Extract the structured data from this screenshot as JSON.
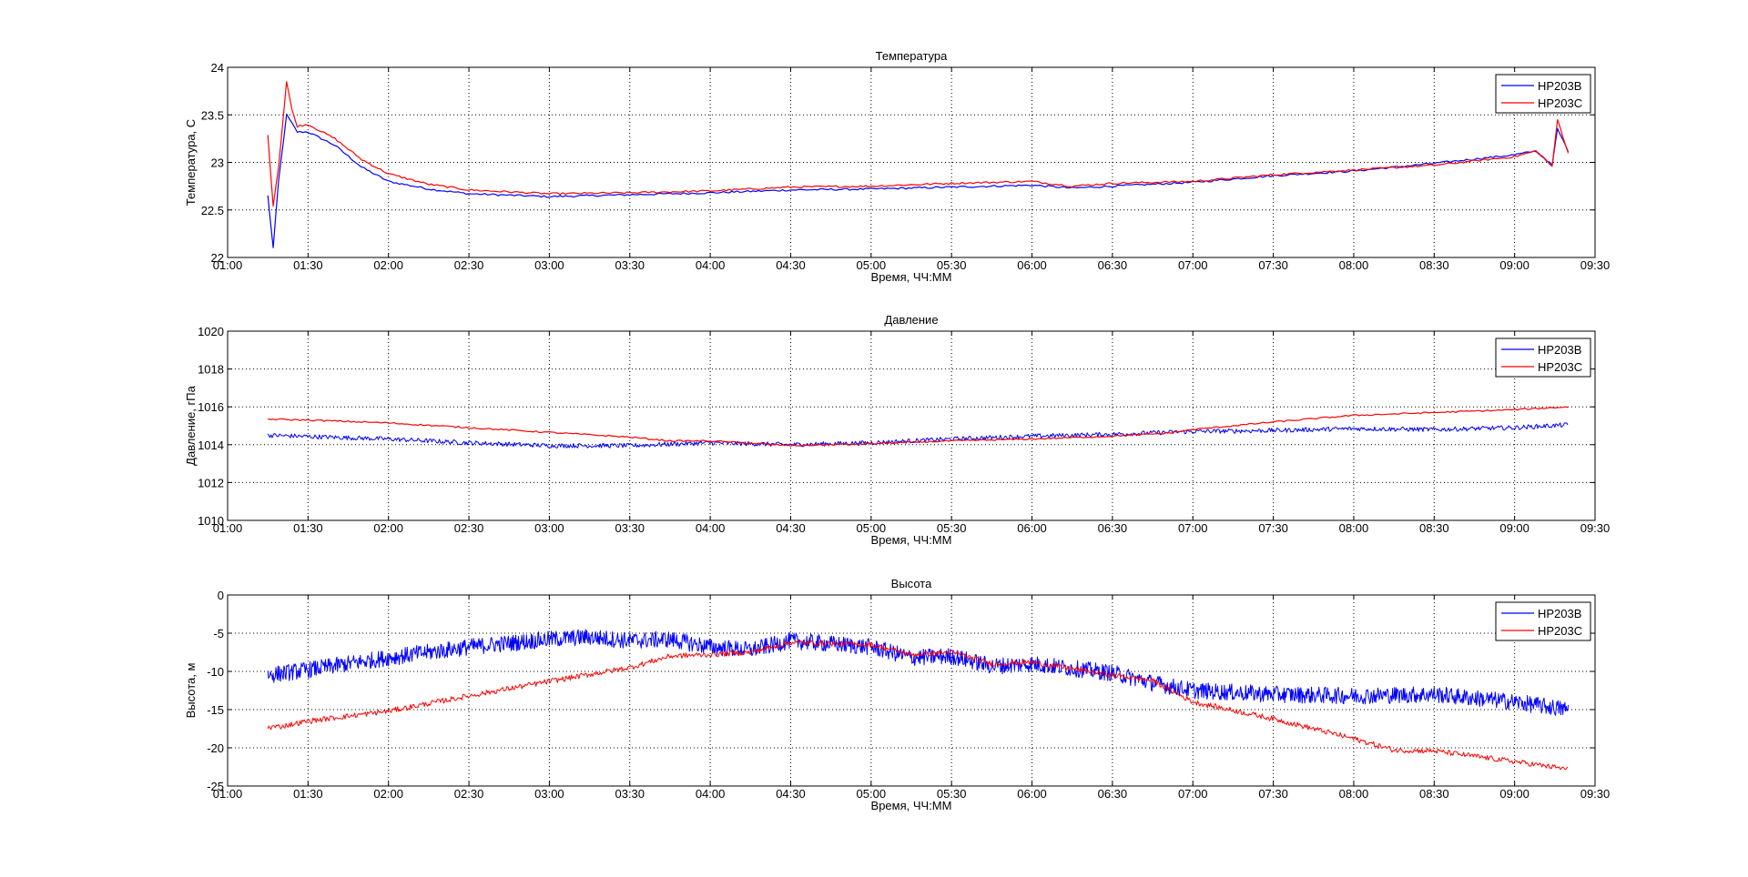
{
  "colors": {
    "HP203B": "#0000ff",
    "HP203C": "#ff0000",
    "grid": "#000000",
    "axes": "#000000"
  },
  "chart_data": [
    {
      "type": "line",
      "title": "Температура",
      "xlabel": "Время, ЧЧ:ММ",
      "ylabel": "Температура, C",
      "xlim": [
        "01:00",
        "09:30"
      ],
      "ylim": [
        22,
        24
      ],
      "xticks": [
        "01:00",
        "01:30",
        "02:00",
        "02:30",
        "03:00",
        "03:30",
        "04:00",
        "04:30",
        "05:00",
        "05:30",
        "06:00",
        "06:30",
        "07:00",
        "07:30",
        "08:00",
        "08:30",
        "09:00",
        "09:30"
      ],
      "yticks": [
        "22",
        "22.5",
        "23",
        "23.5",
        "24"
      ],
      "grid": true,
      "legend_position": "top-right",
      "series": [
        {
          "name": "HP203B",
          "color": "#0000ff",
          "noise": 0.01,
          "points": [
            [
              "01:15",
              22.65
            ],
            [
              "01:17",
              22.1
            ],
            [
              "01:19",
              22.8
            ],
            [
              "01:22",
              23.5
            ],
            [
              "01:26",
              23.32
            ],
            [
              "01:30",
              23.32
            ],
            [
              "01:40",
              23.18
            ],
            [
              "01:50",
              22.95
            ],
            [
              "02:00",
              22.8
            ],
            [
              "02:15",
              22.72
            ],
            [
              "02:30",
              22.67
            ],
            [
              "03:00",
              22.64
            ],
            [
              "03:30",
              22.66
            ],
            [
              "04:00",
              22.68
            ],
            [
              "04:30",
              22.71
            ],
            [
              "05:00",
              22.72
            ],
            [
              "05:30",
              22.74
            ],
            [
              "06:00",
              22.76
            ],
            [
              "06:15",
              22.73
            ],
            [
              "06:30",
              22.75
            ],
            [
              "07:00",
              22.79
            ],
            [
              "07:30",
              22.86
            ],
            [
              "08:00",
              22.91
            ],
            [
              "08:30",
              22.99
            ],
            [
              "09:00",
              23.08
            ],
            [
              "09:08",
              23.12
            ],
            [
              "09:12",
              23.02
            ],
            [
              "09:14",
              22.97
            ],
            [
              "09:16",
              23.35
            ],
            [
              "09:20",
              23.12
            ]
          ]
        },
        {
          "name": "HP203C",
          "color": "#ff0000",
          "noise": 0.01,
          "points": [
            [
              "01:15",
              23.28
            ],
            [
              "01:17",
              22.55
            ],
            [
              "01:19",
              22.95
            ],
            [
              "01:22",
              23.85
            ],
            [
              "01:24",
              23.55
            ],
            [
              "01:26",
              23.38
            ],
            [
              "01:30",
              23.4
            ],
            [
              "01:40",
              23.25
            ],
            [
              "01:50",
              23.03
            ],
            [
              "02:00",
              22.88
            ],
            [
              "02:15",
              22.77
            ],
            [
              "02:30",
              22.71
            ],
            [
              "03:00",
              22.67
            ],
            [
              "03:30",
              22.68
            ],
            [
              "04:00",
              22.7
            ],
            [
              "04:30",
              22.74
            ],
            [
              "05:00",
              22.75
            ],
            [
              "05:30",
              22.78
            ],
            [
              "06:00",
              22.8
            ],
            [
              "06:15",
              22.75
            ],
            [
              "06:30",
              22.78
            ],
            [
              "07:00",
              22.8
            ],
            [
              "07:30",
              22.87
            ],
            [
              "08:00",
              22.92
            ],
            [
              "08:30",
              22.97
            ],
            [
              "09:00",
              23.06
            ],
            [
              "09:08",
              23.12
            ],
            [
              "09:12",
              23.02
            ],
            [
              "09:14",
              22.95
            ],
            [
              "09:16",
              23.45
            ],
            [
              "09:20",
              23.1
            ]
          ]
        }
      ]
    },
    {
      "type": "line",
      "title": "Давление",
      "xlabel": "Время, ЧЧ:ММ",
      "ylabel": "Давление, гПа",
      "xlim": [
        "01:00",
        "09:30"
      ],
      "ylim": [
        1010,
        1020
      ],
      "xticks": [
        "01:00",
        "01:30",
        "02:00",
        "02:30",
        "03:00",
        "03:30",
        "04:00",
        "04:30",
        "05:00",
        "05:30",
        "06:00",
        "06:30",
        "07:00",
        "07:30",
        "08:00",
        "08:30",
        "09:00",
        "09:30"
      ],
      "yticks": [
        "1010",
        "1012",
        "1014",
        "1016",
        "1018",
        "1020"
      ],
      "grid": true,
      "legend_position": "top-right",
      "series": [
        {
          "name": "HP203B",
          "color": "#0000ff",
          "noise": 0.12,
          "points": [
            [
              "01:15",
              1014.5
            ],
            [
              "02:00",
              1014.3
            ],
            [
              "02:30",
              1014.1
            ],
            [
              "03:00",
              1013.95
            ],
            [
              "03:30",
              1013.95
            ],
            [
              "04:00",
              1014.1
            ],
            [
              "04:30",
              1014.0
            ],
            [
              "05:00",
              1014.1
            ],
            [
              "05:30",
              1014.3
            ],
            [
              "06:00",
              1014.45
            ],
            [
              "06:30",
              1014.55
            ],
            [
              "07:00",
              1014.7
            ],
            [
              "07:30",
              1014.75
            ],
            [
              "08:00",
              1014.85
            ],
            [
              "08:30",
              1014.8
            ],
            [
              "09:00",
              1014.9
            ],
            [
              "09:20",
              1015.05
            ]
          ]
        },
        {
          "name": "HP203C",
          "color": "#ff0000",
          "noise": 0.04,
          "points": [
            [
              "01:15",
              1015.35
            ],
            [
              "01:30",
              1015.3
            ],
            [
              "02:00",
              1015.15
            ],
            [
              "02:30",
              1014.9
            ],
            [
              "03:00",
              1014.65
            ],
            [
              "03:30",
              1014.4
            ],
            [
              "03:45",
              1014.2
            ],
            [
              "04:00",
              1014.2
            ],
            [
              "04:30",
              1013.95
            ],
            [
              "05:00",
              1014.05
            ],
            [
              "05:30",
              1014.2
            ],
            [
              "06:00",
              1014.3
            ],
            [
              "06:30",
              1014.45
            ],
            [
              "06:50",
              1014.6
            ],
            [
              "07:00",
              1014.8
            ],
            [
              "07:30",
              1015.2
            ],
            [
              "08:00",
              1015.55
            ],
            [
              "08:30",
              1015.7
            ],
            [
              "09:00",
              1015.85
            ],
            [
              "09:20",
              1016.0
            ]
          ]
        }
      ]
    },
    {
      "type": "line",
      "title": "Высота",
      "xlabel": "Время, ЧЧ:ММ",
      "ylabel": "Высота, м",
      "xlim": [
        "01:00",
        "09:30"
      ],
      "ylim": [
        -25,
        0
      ],
      "xticks": [
        "01:00",
        "01:30",
        "02:00",
        "02:30",
        "03:00",
        "03:30",
        "04:00",
        "04:30",
        "05:00",
        "05:30",
        "06:00",
        "06:30",
        "07:00",
        "07:30",
        "08:00",
        "08:30",
        "09:00",
        "09:30"
      ],
      "yticks": [
        "-25",
        "-20",
        "-15",
        "-10",
        "-5",
        "0"
      ],
      "grid": true,
      "legend_position": "top-right",
      "series": [
        {
          "name": "HP203B",
          "color": "#0000ff",
          "noise": 1.1,
          "points": [
            [
              "01:15",
              -10.5
            ],
            [
              "01:30",
              -9.8
            ],
            [
              "02:00",
              -8.2
            ],
            [
              "02:30",
              -6.8
            ],
            [
              "03:00",
              -5.8
            ],
            [
              "03:15",
              -5.5
            ],
            [
              "03:30",
              -6.0
            ],
            [
              "03:45",
              -5.8
            ],
            [
              "04:00",
              -6.8
            ],
            [
              "04:15",
              -7.2
            ],
            [
              "04:30",
              -6.0
            ],
            [
              "05:00",
              -6.8
            ],
            [
              "05:15",
              -8.2
            ],
            [
              "05:30",
              -8.0
            ],
            [
              "05:45",
              -9.3
            ],
            [
              "06:00",
              -9.0
            ],
            [
              "06:30",
              -10.2
            ],
            [
              "06:45",
              -11.5
            ],
            [
              "07:00",
              -12.5
            ],
            [
              "07:30",
              -13.0
            ],
            [
              "08:00",
              -13.2
            ],
            [
              "08:30",
              -13.0
            ],
            [
              "09:00",
              -14.0
            ],
            [
              "09:20",
              -15.0
            ]
          ]
        },
        {
          "name": "HP203C",
          "color": "#ff0000",
          "noise": 0.35,
          "points": [
            [
              "01:15",
              -17.3
            ],
            [
              "01:20",
              -17.2
            ],
            [
              "01:30",
              -16.5
            ],
            [
              "02:00",
              -15.2
            ],
            [
              "02:30",
              -13.2
            ],
            [
              "03:00",
              -11.3
            ],
            [
              "03:30",
              -9.5
            ],
            [
              "03:45",
              -8.0
            ],
            [
              "04:00",
              -7.8
            ],
            [
              "04:15",
              -7.5
            ],
            [
              "04:30",
              -6.2
            ],
            [
              "05:00",
              -6.5
            ],
            [
              "05:15",
              -7.8
            ],
            [
              "05:30",
              -7.5
            ],
            [
              "05:45",
              -9.0
            ],
            [
              "06:00",
              -8.8
            ],
            [
              "06:30",
              -10.5
            ],
            [
              "06:45",
              -11.2
            ],
            [
              "07:00",
              -14.0
            ],
            [
              "07:30",
              -16.2
            ],
            [
              "08:00",
              -18.8
            ],
            [
              "08:15",
              -20.3
            ],
            [
              "08:30",
              -20.4
            ],
            [
              "09:00",
              -21.8
            ],
            [
              "09:20",
              -22.8
            ]
          ]
        }
      ]
    }
  ]
}
